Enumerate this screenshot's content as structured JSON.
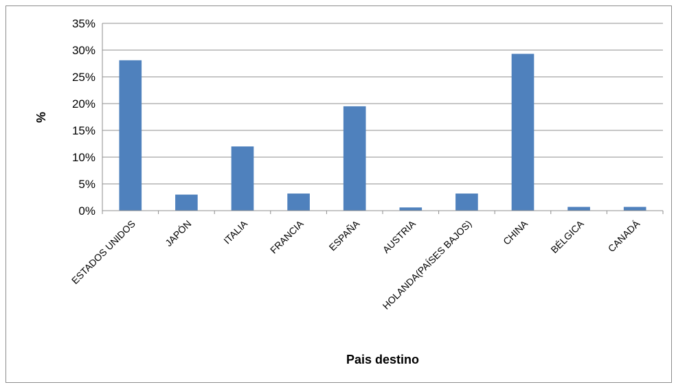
{
  "chart_data": {
    "type": "bar",
    "title": "",
    "xlabel": "Pais destino",
    "ylabel": "%",
    "ylim": [
      0,
      0.35
    ],
    "ytick_step": 0.05,
    "grid": true,
    "legend": "none",
    "bar_color": "#4f81bd",
    "categories": [
      "ESTADOS UNIDOS",
      "JAPÓN",
      "ITALIA",
      "FRANCIA",
      "ESPAÑA",
      "AUSTRIA",
      "HOLANDA(PAÍSES BAJOS)",
      "CHINA",
      "BÉLGICA",
      "CANADÁ"
    ],
    "series": [
      {
        "values": [
          0.281,
          0.03,
          0.12,
          0.032,
          0.195,
          0.006,
          0.032,
          0.293,
          0.007,
          0.007
        ]
      }
    ]
  }
}
